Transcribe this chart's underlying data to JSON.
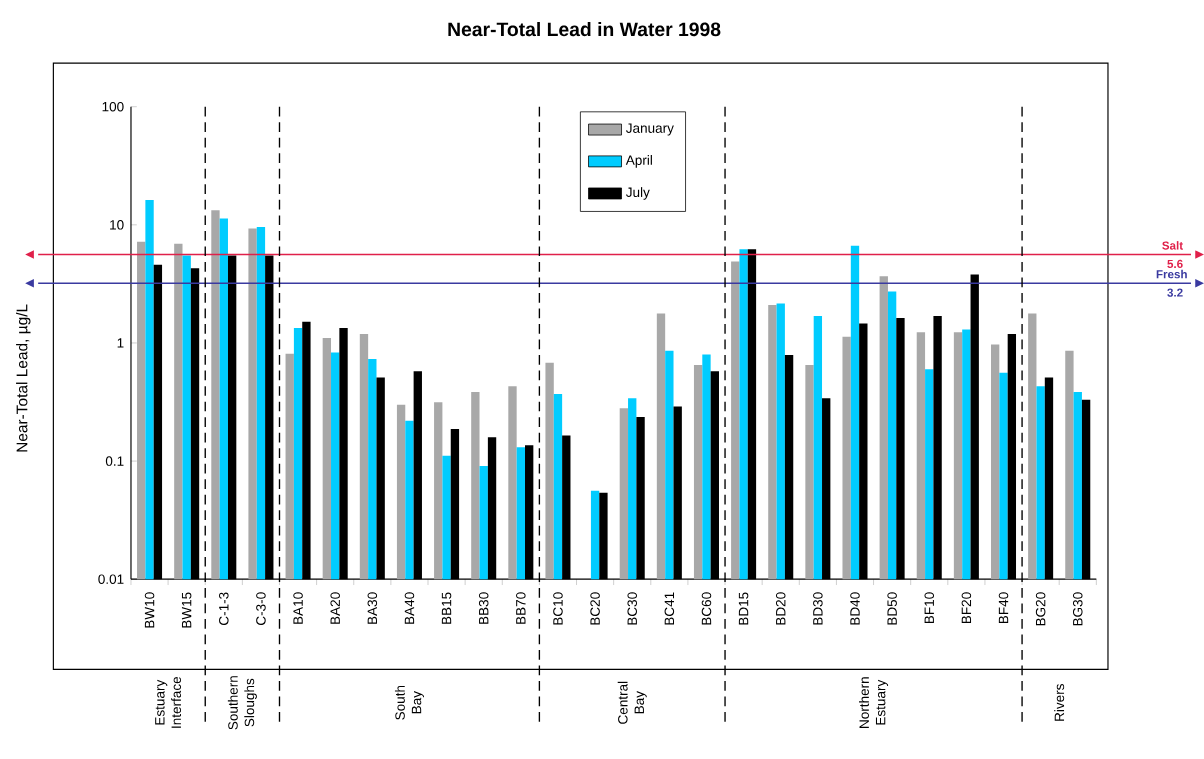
{
  "chart_data": {
    "type": "bar",
    "title": "Near-Total Lead in Water 1998",
    "ylabel": "Near-Total Lead, µg/L",
    "categories": [
      "BW10",
      "BW15",
      "C-1-3",
      "C-3-0",
      "BA10",
      "BA20",
      "BA30",
      "BA40",
      "BB15",
      "BB30",
      "BB70",
      "BC10",
      "BC20",
      "BC30",
      "BC41",
      "BC60",
      "BD15",
      "BD20",
      "BD30",
      "BD40",
      "BD50",
      "BF10",
      "BF20",
      "BF40",
      "BG20",
      "BG30"
    ],
    "series": [
      {
        "name": "January",
        "color": "#a8a8a8",
        "values": [
          7.2,
          6.9,
          13.3,
          9.3,
          0.81,
          1.1,
          1.19,
          0.3,
          0.315,
          0.385,
          0.43,
          0.68,
          null,
          0.28,
          1.78,
          0.65,
          4.9,
          2.1,
          0.65,
          1.13,
          3.67,
          1.23,
          1.23,
          0.97,
          1.78,
          0.86
        ]
      },
      {
        "name": "April",
        "color": "#00ccff",
        "values": [
          16.2,
          5.5,
          11.3,
          9.6,
          1.34,
          0.83,
          0.73,
          0.22,
          0.111,
          0.091,
          0.131,
          0.37,
          0.056,
          0.34,
          0.86,
          0.8,
          6.2,
          2.16,
          1.69,
          6.65,
          2.73,
          0.6,
          1.3,
          0.56,
          0.43,
          0.385
        ]
      },
      {
        "name": "July",
        "color": "#000000",
        "values": [
          4.6,
          4.3,
          5.5,
          5.5,
          1.51,
          1.34,
          0.51,
          0.575,
          0.187,
          0.159,
          0.136,
          0.165,
          0.054,
          0.236,
          0.29,
          0.575,
          6.2,
          0.79,
          0.34,
          1.46,
          1.63,
          1.69,
          3.8,
          1.19,
          0.51,
          0.33
        ]
      }
    ],
    "log": true,
    "ylim": [
      0.01,
      100
    ],
    "yticks": [
      0.01,
      0.1,
      1,
      10,
      100
    ],
    "legend": "top",
    "ref_lines": [
      {
        "axis": "y",
        "value": 5.6,
        "label": "Salt 5.6",
        "color": "#e0204a"
      },
      {
        "axis": "y",
        "value": 3.2,
        "label": "Fresh 3.2",
        "color": "#3a3aa0"
      }
    ],
    "annotations": [
      "Estuary Interface",
      "Southern Sloughs",
      "South Bay",
      "Central Bay",
      "Northern Estuary",
      "Rivers"
    ]
  }
}
